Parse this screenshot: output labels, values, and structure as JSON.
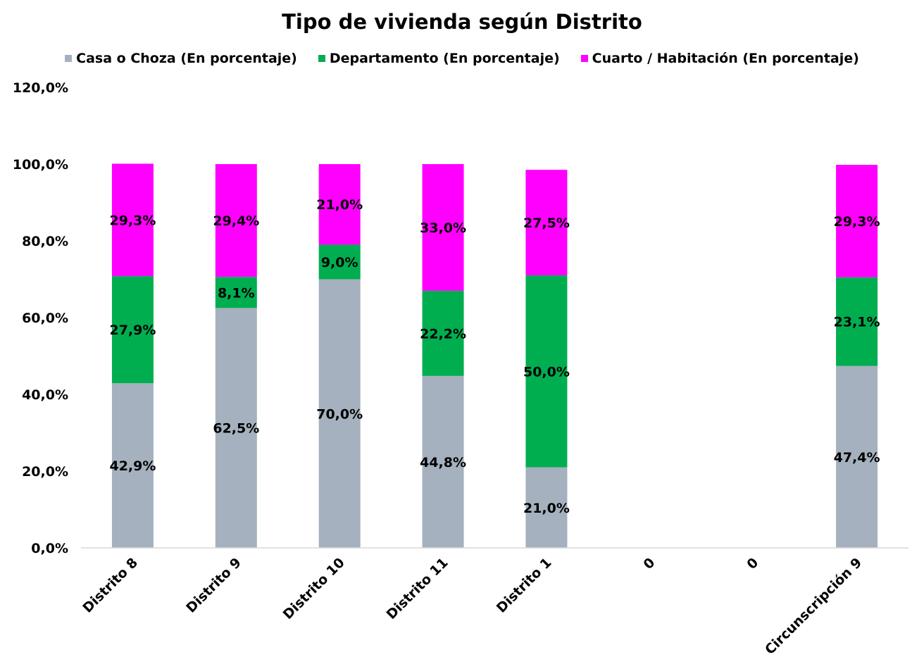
{
  "chart_data": {
    "type": "bar",
    "stacked": true,
    "title": "Tipo de vivienda según Distrito",
    "categories": [
      "Distrito 8",
      "Distrito 9",
      "Distrito 10",
      "Distrito 11",
      "Distrito 1",
      "0",
      "0",
      "Circunscripción 9"
    ],
    "series": [
      {
        "name": "Casa o Choza (En porcentaje)",
        "color": "#a5b1be",
        "values": [
          42.9,
          62.5,
          70.0,
          44.8,
          21.0,
          null,
          null,
          47.4
        ],
        "labels": [
          "42,9%",
          "62,5%",
          "70,0%",
          "44,8%",
          "21,0%",
          "",
          "",
          "47,4%"
        ]
      },
      {
        "name": "Departamento (En porcentaje)",
        "color": "#00ae50",
        "values": [
          27.9,
          8.1,
          9.0,
          22.2,
          50.0,
          null,
          null,
          23.1
        ],
        "labels": [
          "27,9%",
          "8,1%",
          "9,0%",
          "22,2%",
          "50,0%",
          "",
          "",
          "23,1%"
        ]
      },
      {
        "name": "Cuarto / Habitación (En porcentaje)",
        "color": "#ff00ff",
        "values": [
          29.3,
          29.4,
          21.0,
          33.0,
          27.5,
          null,
          null,
          29.3
        ],
        "labels": [
          "29,3%",
          "29,4%",
          "21,0%",
          "33,0%",
          "27,5%",
          "",
          "",
          "29,3%"
        ]
      }
    ],
    "ylim": [
      0,
      120
    ],
    "yticks": [
      0,
      20,
      40,
      60,
      80,
      100,
      120
    ],
    "ytick_labels": [
      "0,0%",
      "20,0%",
      "40,0%",
      "60,0%",
      "80,0%",
      "100,0%",
      "120,0%"
    ],
    "xlabel": "",
    "ylabel": "",
    "grid": false,
    "legend_position": "top"
  }
}
